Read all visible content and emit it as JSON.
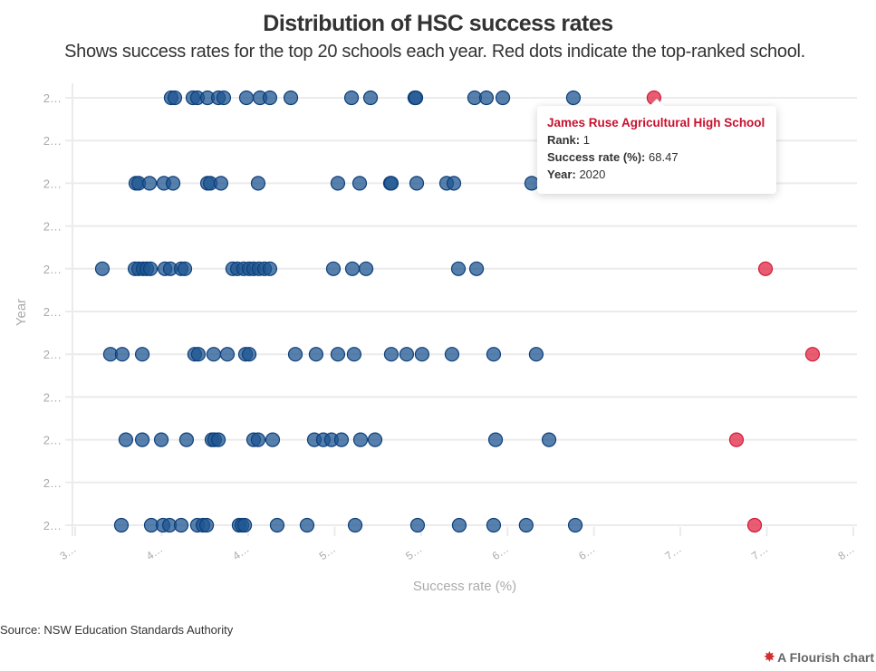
{
  "header": {
    "title": "Distribution of HSC success rates",
    "subtitle": "Shows success rates for the top 20 schools each year. Red dots indicate the top-ranked school."
  },
  "footer": {
    "source": "Source: NSW Education Standards Authority",
    "credit": "A Flourish chart",
    "credit_icon": "flourish-logo-icon"
  },
  "colors": {
    "dot": "#1f5591",
    "dot_stroke": "#0d3f7a",
    "top_ranked": "#e2354f",
    "grid": "#ebebeb",
    "axis_text": "#aaaaaa"
  },
  "tooltip": {
    "school": "James Ruse Agricultural High School",
    "rows": [
      {
        "label": "Rank:",
        "value": "1"
      },
      {
        "label": "Success rate (%):",
        "value": "68.47"
      },
      {
        "label": "Year:",
        "value": "2020"
      }
    ]
  },
  "chart_data": {
    "type": "scatter",
    "title": "Distribution of HSC success rates",
    "subtitle": "Shows success rates for the top 20 schools each year. Red dots indicate the top-ranked school.",
    "xlabel": "Success rate (%)",
    "ylabel": "Year",
    "xlim": [
      35,
      80
    ],
    "x_ticks": [
      35,
      40,
      45,
      50,
      55,
      60,
      65,
      70,
      75,
      80
    ],
    "x_tick_labels": [
      "3…",
      "4…",
      "4…",
      "5…",
      "5…",
      "6…",
      "6…",
      "7…",
      "7…",
      "8…"
    ],
    "y_ticks": [
      2020,
      2019.5,
      2019,
      2018.5,
      2018,
      2017.5,
      2017,
      2016.5,
      2016,
      2015.5,
      2015
    ],
    "y_tick_labels": [
      "2…",
      "2…",
      "2…",
      "2…",
      "2…",
      "2…",
      "2…",
      "2…",
      "2…",
      "2…",
      "2…"
    ],
    "grid": true,
    "legend": "none",
    "series": [
      {
        "name": "Top 20 schools",
        "color": "#1f5591",
        "points": [
          {
            "year": 2020,
            "values": [
              40.55,
              40.76,
              41.81,
              42.07,
              42.65,
              43.28,
              43.59,
              44.9,
              45.69,
              46.26,
              47.47,
              50.98,
              52.08,
              54.64,
              54.7,
              58.1,
              58.78,
              59.73,
              63.81
            ]
          },
          {
            "year": 2019,
            "values": [
              38.51,
              38.67,
              39.3,
              40.13,
              40.66,
              42.65,
              42.81,
              43.43,
              45.58,
              50.19,
              51.45,
              53.23,
              53.28,
              54.75,
              56.48,
              56.9,
              61.4
            ]
          },
          {
            "year": 2018,
            "values": [
              36.57,
              38.46,
              38.67,
              38.93,
              39.14,
              39.35,
              40.19,
              40.5,
              41.13,
              41.34,
              44.11,
              44.38,
              44.74,
              45.06,
              45.32,
              45.63,
              45.95,
              46.26,
              49.93,
              51.03,
              51.82,
              57.16,
              58.21
            ]
          },
          {
            "year": 2017,
            "values": [
              37.04,
              37.72,
              38.88,
              41.91,
              42.12,
              43.01,
              43.8,
              44.85,
              45.06,
              47.73,
              48.93,
              50.19,
              51.13,
              53.28,
              54.17,
              55.06,
              56.79,
              59.2,
              61.66
            ]
          },
          {
            "year": 2016,
            "values": [
              37.93,
              38.88,
              39.98,
              41.44,
              42.91,
              43.06,
              43.28,
              45.32,
              45.58,
              46.42,
              48.83,
              49.35,
              49.82,
              50.4,
              51.5,
              52.34,
              59.31,
              62.4
            ]
          },
          {
            "year": 2015,
            "values": [
              37.67,
              39.4,
              40.08,
              40.45,
              41.13,
              42.07,
              42.39,
              42.6,
              44.48,
              44.64,
              44.8,
              46.68,
              48.41,
              51.19,
              54.8,
              57.21,
              59.2,
              61.08,
              63.92
            ]
          }
        ]
      },
      {
        "name": "Top-ranked school",
        "color": "#e2354f",
        "points": [
          {
            "year": 2020,
            "values": [
              68.47
            ],
            "hovered": true
          },
          {
            "year": 2018,
            "values": [
              74.92
            ]
          },
          {
            "year": 2017,
            "values": [
              77.64
            ]
          },
          {
            "year": 2016,
            "values": [
              73.24
            ]
          },
          {
            "year": 2015,
            "values": [
              74.29
            ]
          }
        ]
      }
    ]
  }
}
